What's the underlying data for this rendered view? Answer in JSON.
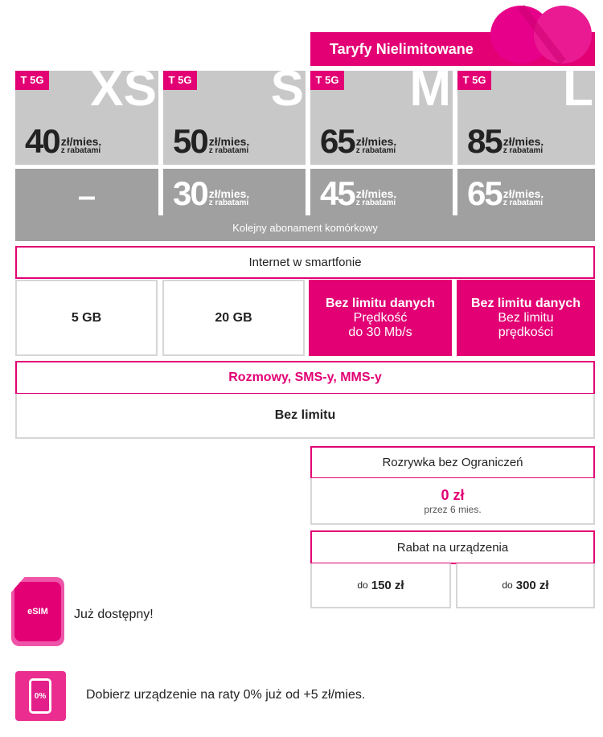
{
  "header": {
    "title": "Taryfy Nielimitowane"
  },
  "badge": "T 5G",
  "unit": "zł/mies.",
  "unit_sub": "z rabatami",
  "plans": [
    {
      "size": "XS",
      "price": "40",
      "next": "–"
    },
    {
      "size": "S",
      "price": "50",
      "next": "30"
    },
    {
      "size": "M",
      "price": "65",
      "next": "45"
    },
    {
      "size": "L",
      "price": "85",
      "next": "65"
    }
  ],
  "next_label": "Kolejny abonament komórkowy",
  "internet": {
    "title": "Internet w smartfonie",
    "xs": "5 GB",
    "s": "20 GB",
    "m": {
      "title": "Bez limitu danych",
      "l1": "Prędkość",
      "l2": "do 30 Mb/s"
    },
    "l": {
      "title": "Bez limitu danych",
      "l1": "Bez limitu",
      "l2": "prędkości"
    }
  },
  "calls": {
    "title": "Rozmowy, SMS-y, MMS-y",
    "value": "Bez limitu"
  },
  "entertainment": {
    "title": "Rozrywka bez Ograniczeń",
    "price": "0 zł",
    "note": "przez 6 mies."
  },
  "discount": {
    "title": "Rabat na urządzenia",
    "prefix": "do",
    "m": "150 zł",
    "l": "300 zł"
  },
  "esim": {
    "icon_label": "eSIM",
    "text": "Już dostępny!"
  },
  "installment": {
    "icon_label": "0%",
    "text": "Dobierz urządzenie na raty 0% już od +5 zł/mies."
  },
  "colors": {
    "accent": "#e20074",
    "light_gray": "#c8c8c8",
    "dark_gray": "#a0a0a0"
  }
}
